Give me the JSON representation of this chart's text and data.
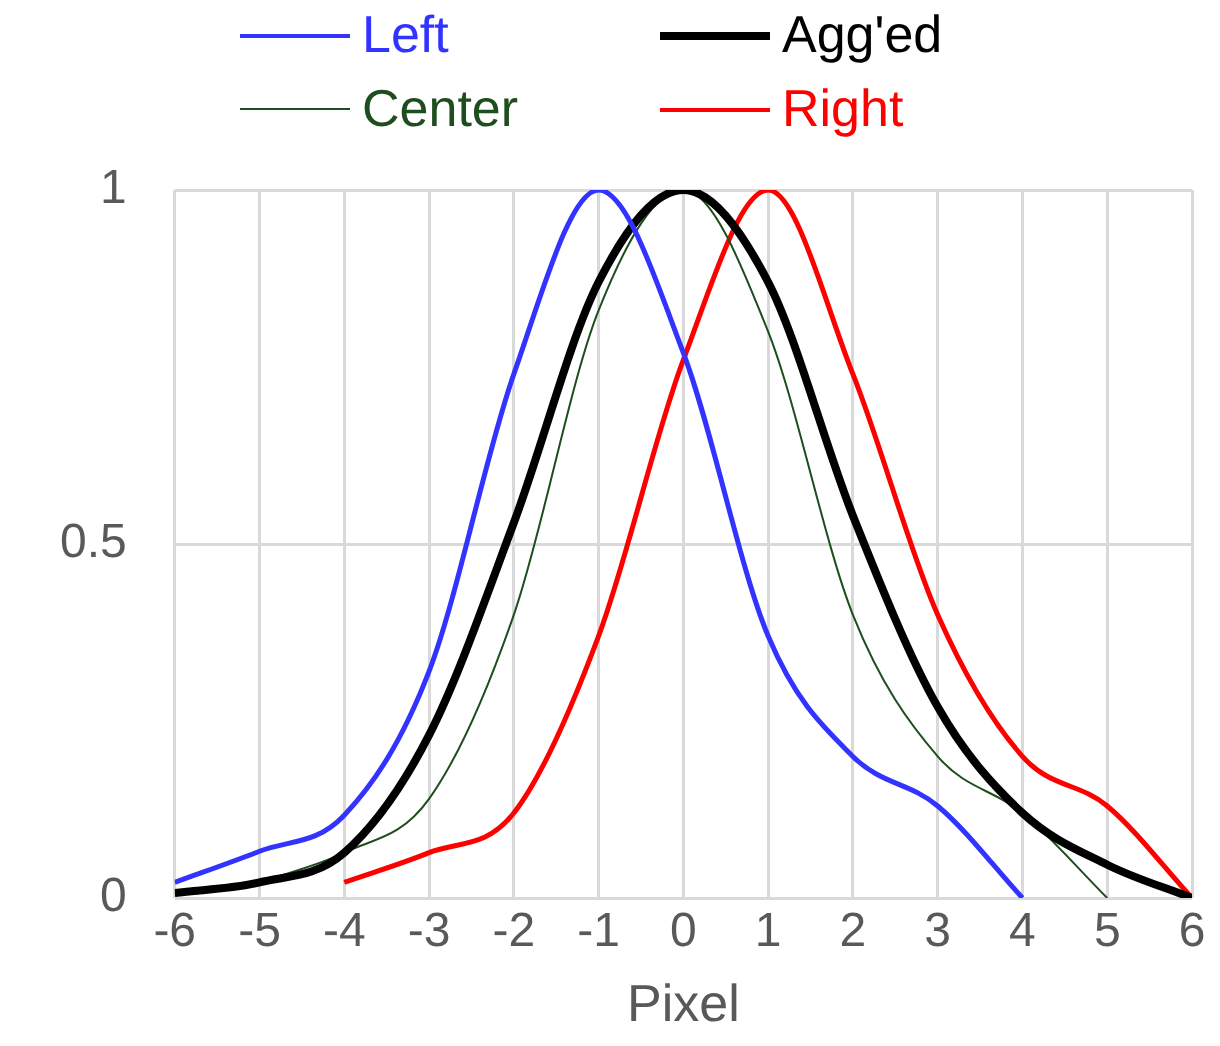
{
  "chart_data": {
    "type": "line",
    "xlabel": "Pixel",
    "legend": "top",
    "grid": true,
    "marker": "none",
    "line_style": "solid",
    "xlim": [
      -6,
      6
    ],
    "xticks": [
      -6,
      -5,
      -4,
      -3,
      -2,
      -1,
      0,
      1,
      2,
      3,
      4,
      5,
      6
    ],
    "ylim": [
      0,
      1
    ],
    "yticks": [
      0,
      0.5,
      1
    ],
    "series": [
      {
        "name": "Left",
        "color": "#3333ff",
        "x": [
          -6,
          -5,
          -4,
          -3,
          -2,
          -1,
          0,
          1,
          2,
          3,
          4
        ],
        "values": [
          0.022,
          0.066,
          0.117,
          0.32,
          0.74,
          1,
          0.77,
          0.37,
          0.2,
          0.13,
          0
        ]
      },
      {
        "name": "Agg'ed",
        "color": "#000000",
        "x": [
          -6,
          -5,
          -4,
          -3,
          -2,
          -1,
          0,
          1,
          2,
          3,
          4,
          5,
          6
        ],
        "values": [
          0.007,
          0.022,
          0.064,
          0.23,
          0.53,
          0.87,
          1,
          0.87,
          0.54,
          0.27,
          0.12,
          0.047,
          0
        ]
      },
      {
        "name": "Center",
        "color": "#1e4d1e",
        "x": [
          -5,
          -4,
          -3,
          -2,
          -1,
          0,
          1,
          2,
          3,
          4,
          5
        ],
        "values": [
          0.022,
          0.064,
          0.14,
          0.4,
          0.83,
          1,
          0.8,
          0.4,
          0.2,
          0.12,
          0
        ]
      },
      {
        "name": "Right",
        "color": "#ff0000",
        "x": [
          -4,
          -3,
          -2,
          -1,
          0,
          1,
          2,
          3,
          4,
          5,
          6
        ],
        "values": [
          0.022,
          0.064,
          0.12,
          0.37,
          0.76,
          1,
          0.74,
          0.4,
          0.2,
          0.13,
          0
        ]
      }
    ]
  }
}
